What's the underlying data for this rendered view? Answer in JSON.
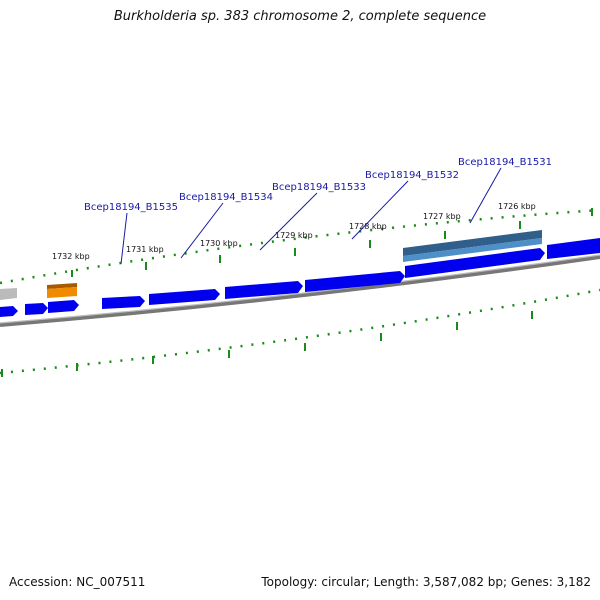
{
  "title": "Burkholderia sp. 383 chromosome 2, complete sequence",
  "footer": {
    "accession": "Accession: NC_007511",
    "summary": "Topology: circular; Length: 3,587,082 bp; Genes: 3,182"
  },
  "scale_labels": [
    "1732 kbp",
    "1731 kbp",
    "1730 kbp",
    "1729 kbp",
    "1728 kbp",
    "1727 kbp",
    "1726 kbp"
  ],
  "gene_labels": [
    "Bcep18194_B1535",
    "Bcep18194_B1534",
    "Bcep18194_B1533",
    "Bcep18194_B1532",
    "Bcep18194_B1531"
  ],
  "colors": {
    "cds": "#0000ee",
    "highlight_top": "#2f5f8a",
    "highlight_bottom": "#4d8fc6",
    "orange": "#f08a00",
    "backbone": "#888888",
    "ticks": "#1a8a1a",
    "label_text": "#1a1aa6"
  }
}
